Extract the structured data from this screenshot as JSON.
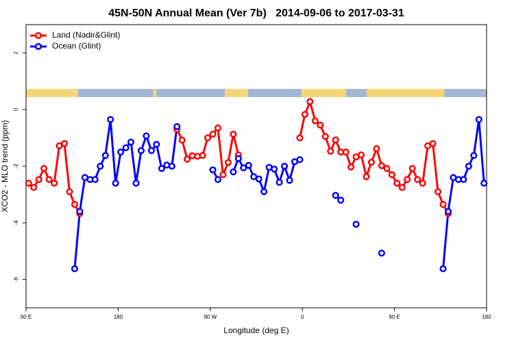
{
  "chart_data": {
    "type": "line",
    "title": "45N-50N Annual Mean (Ver 7b)   2014-09-06 to 2017-03-31",
    "x_label": "Longitude (deg E)",
    "y_label": "XCO2 - MLO trend (ppm)",
    "xlim": [
      90,
      540
    ],
    "ylim": [
      -7,
      3
    ],
    "xticks": [
      {
        "value": 90,
        "label": "90 E"
      },
      {
        "value": 180,
        "label": "180"
      },
      {
        "value": 270,
        "label": "90 W"
      },
      {
        "value": 360,
        "label": "0"
      },
      {
        "value": 450,
        "label": "90 E"
      },
      {
        "value": 540,
        "label": "180"
      }
    ],
    "yticks": [
      -6,
      -4,
      -2,
      0,
      2
    ],
    "legend": "top-left",
    "x": [
      92.5,
      97.5,
      102.5,
      107.5,
      112.5,
      117.5,
      122.5,
      127.5,
      132.5,
      137.5,
      142.5,
      147.5,
      152.5,
      157.5,
      162.5,
      167.5,
      172.5,
      177.5,
      182.5,
      187.5,
      192.5,
      197.5,
      202.5,
      207.5,
      212.5,
      217.5,
      222.5,
      227.5,
      232.5,
      237.5,
      242.5,
      247.5,
      252.5,
      257.5,
      262.5,
      267.5,
      272.5,
      277.5,
      282.5,
      287.5,
      292.5,
      297.5,
      302.5,
      307.5,
      312.5,
      317.5,
      322.5,
      327.5,
      332.5,
      337.5,
      342.5,
      347.5,
      352.5,
      357.5,
      362.5,
      367.5,
      372.5,
      377.5,
      382.5,
      387.5,
      392.5,
      397.5,
      402.5,
      407.5,
      412.5,
      417.5,
      422.5,
      427.5,
      432.5,
      437.5,
      442.5,
      447.5,
      452.5,
      457.5,
      462.5,
      467.5,
      472.5,
      477.5,
      482.5,
      487.5,
      492.5,
      497.5,
      502.5,
      507.5,
      512.5,
      517.5,
      522.5,
      527.5,
      532.5,
      537.5
    ],
    "series": [
      {
        "name": "Land (Nadir&Glint)",
        "color": "#ff0000",
        "values": [
          -2.6,
          -2.75,
          -2.47,
          -2.08,
          -2.47,
          -2.6,
          -1.28,
          -1.2,
          -2.9,
          -3.35,
          -3.67,
          null,
          null,
          null,
          null,
          null,
          null,
          null,
          null,
          null,
          null,
          null,
          null,
          null,
          null,
          null,
          null,
          null,
          null,
          -0.7,
          -1.08,
          -1.75,
          -1.63,
          -1.65,
          -1.62,
          -1.0,
          -0.87,
          -0.65,
          -2.3,
          -1.87,
          -0.87,
          -1.6,
          null,
          null,
          null,
          null,
          null,
          null,
          null,
          null,
          null,
          null,
          null,
          -1.0,
          -0.17,
          0.28,
          -0.4,
          -0.55,
          -0.95,
          -1.47,
          -1.07,
          -1.5,
          -1.5,
          -2.03,
          -1.67,
          -1.6,
          -2.37,
          -1.86,
          -1.38,
          -1.98,
          -2.08,
          -2.3,
          -2.6,
          -2.75,
          -2.47,
          -2.08,
          -2.47,
          -2.6,
          -1.28,
          -1.2,
          -2.9,
          -3.35,
          -3.67,
          null,
          null,
          null,
          null,
          null,
          null,
          null
        ]
      },
      {
        "name": "Ocean (Glint)",
        "color": "#0000ff",
        "values": [
          null,
          null,
          null,
          null,
          null,
          null,
          null,
          null,
          null,
          -5.62,
          -3.6,
          -2.4,
          -2.47,
          -2.47,
          -2.0,
          -1.62,
          -0.35,
          -2.6,
          -1.5,
          -1.35,
          -1.15,
          -2.6,
          -1.45,
          -0.93,
          -1.45,
          -1.23,
          -2.08,
          -1.96,
          -2.0,
          -0.6,
          null,
          null,
          null,
          null,
          null,
          null,
          -2.13,
          -2.47,
          null,
          null,
          -2.2,
          -1.73,
          -2.06,
          -1.97,
          -2.37,
          -2.45,
          -2.9,
          -2.04,
          -2.1,
          -2.57,
          -2.0,
          -2.5,
          -1.84,
          -1.77,
          null,
          null,
          null,
          null,
          null,
          null,
          -3.03,
          -3.2,
          null,
          null,
          -4.05,
          null,
          null,
          null,
          null,
          -5.07,
          null,
          null,
          null,
          null,
          null,
          null,
          null,
          null,
          null,
          null,
          null,
          -5.62,
          -3.6,
          -2.4,
          -2.47,
          -2.47,
          -2.0,
          -1.62,
          -0.35,
          -2.6
        ]
      }
    ]
  }
}
